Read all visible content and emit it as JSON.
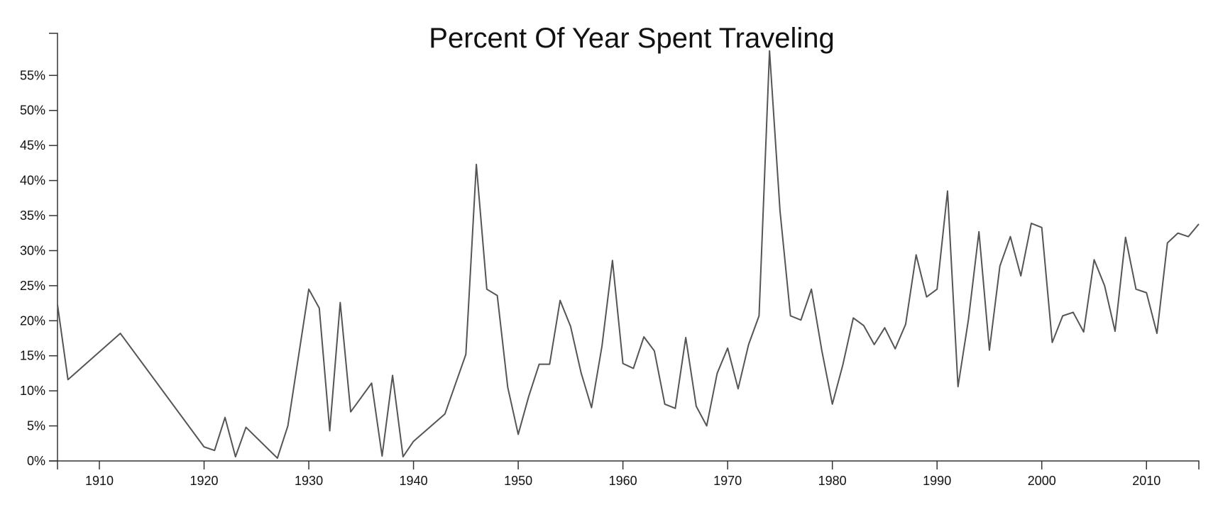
{
  "chart_data": {
    "type": "line",
    "title": "Percent Of Year Spent Traveling",
    "xlabel": "",
    "ylabel": "",
    "xlim": [
      1906,
      2015
    ],
    "ylim": [
      0,
      61
    ],
    "x_ticks": [
      1910,
      1920,
      1930,
      1940,
      1950,
      1960,
      1970,
      1980,
      1990,
      2000,
      2010
    ],
    "x_tick_labels": [
      "1910",
      "1920",
      "1930",
      "1940",
      "1950",
      "1960",
      "1970",
      "1980",
      "1990",
      "2000",
      "2010"
    ],
    "y_ticks": [
      0,
      5,
      10,
      15,
      20,
      25,
      30,
      35,
      40,
      45,
      50,
      55
    ],
    "y_tick_labels": [
      "0%",
      "5%",
      "10%",
      "15%",
      "20%",
      "25%",
      "30%",
      "35%",
      "40%",
      "45%",
      "50%",
      "55%"
    ],
    "grid": false,
    "series": [
      {
        "color": "#555555",
        "x": [
          1906,
          1907,
          1912,
          1920,
          1921,
          1922,
          1923,
          1924,
          1927,
          1928,
          1930,
          1931,
          1932,
          1933,
          1934,
          1936,
          1937,
          1938,
          1939,
          1940,
          1943,
          1945,
          1946,
          1947,
          1948,
          1949,
          1950,
          1951,
          1952,
          1953,
          1954,
          1955,
          1956,
          1957,
          1958,
          1959,
          1960,
          1961,
          1962,
          1963,
          1964,
          1965,
          1966,
          1967,
          1968,
          1969,
          1970,
          1971,
          1972,
          1973,
          1974,
          1975,
          1976,
          1977,
          1978,
          1979,
          1980,
          1981,
          1982,
          1983,
          1984,
          1985,
          1986,
          1987,
          1988,
          1989,
          1990,
          1991,
          1992,
          1993,
          1994,
          1995,
          1996,
          1997,
          1998,
          1999,
          2000,
          2001,
          2002,
          2003,
          2004,
          2005,
          2006,
          2007,
          2008,
          2009,
          2010,
          2011,
          2012,
          2013,
          2014,
          2015
        ],
        "values": [
          22.3,
          11.6,
          18.2,
          2.0,
          1.5,
          6.2,
          0.6,
          4.8,
          0.4,
          5.0,
          24.5,
          21.8,
          4.3,
          22.6,
          7.0,
          11.1,
          0.7,
          12.2,
          0.6,
          2.8,
          6.7,
          15.2,
          42.3,
          24.5,
          23.6,
          10.5,
          3.8,
          9.2,
          13.8,
          13.8,
          22.9,
          19.2,
          12.6,
          7.6,
          16.4,
          28.6,
          13.9,
          13.2,
          17.7,
          15.7,
          8.1,
          7.5,
          17.6,
          7.8,
          5.0,
          12.5,
          16.1,
          10.3,
          16.6,
          20.7,
          58.5,
          35.7,
          20.7,
          20.1,
          24.5,
          15.7,
          8.1,
          13.7,
          20.4,
          19.3,
          16.6,
          19.0,
          16.0,
          19.5,
          29.4,
          23.4,
          24.5,
          38.5,
          10.6,
          20.2,
          32.7,
          15.8,
          27.8,
          32.0,
          26.4,
          33.9,
          33.3,
          16.9,
          20.7,
          21.2,
          18.4,
          28.7,
          25.0,
          18.5,
          31.9,
          24.5,
          24.0,
          18.2,
          31.1,
          32.5,
          32.0,
          33.8
        ]
      }
    ]
  }
}
